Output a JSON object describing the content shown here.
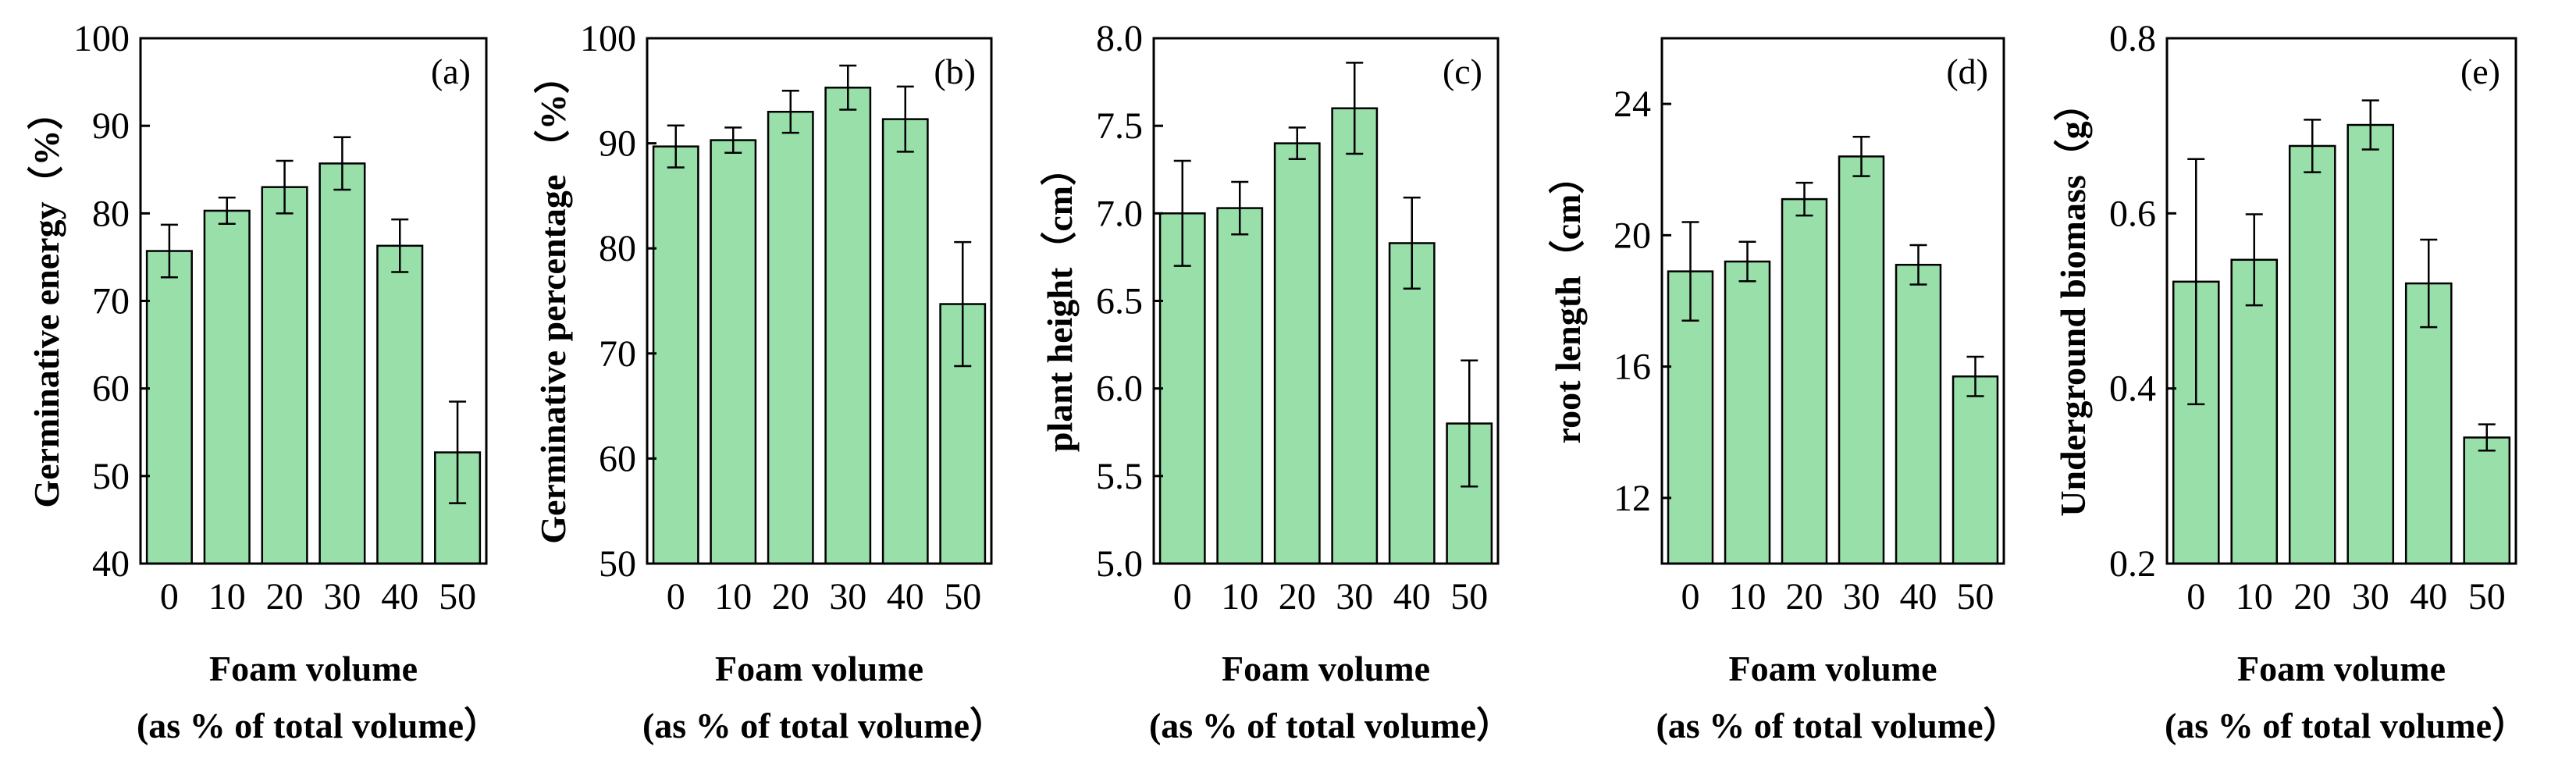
{
  "colors": {
    "bar_fill": "#98dfaa",
    "outline": "#000000"
  },
  "chart_data": [
    {
      "type": "bar",
      "panel_label": "(a)",
      "categories": [
        "0",
        "10",
        "20",
        "30",
        "40",
        "50"
      ],
      "values": [
        75.7,
        80.3,
        83.0,
        85.7,
        76.3,
        52.7
      ],
      "errors": [
        3.0,
        1.5,
        3.0,
        3.0,
        3.0,
        5.8
      ],
      "ylabel": "Germinative energy（%）",
      "xlabel": [
        "Foam volume",
        "(as % of total volume）"
      ],
      "ylim": [
        40,
        100
      ],
      "yticks": [
        40,
        50,
        60,
        70,
        80,
        90,
        100
      ]
    },
    {
      "type": "bar",
      "panel_label": "(b)",
      "categories": [
        "0",
        "10",
        "20",
        "30",
        "40",
        "50"
      ],
      "values": [
        89.7,
        90.3,
        93.0,
        95.3,
        92.3,
        74.7
      ],
      "errors": [
        2.0,
        1.2,
        2.0,
        2.1,
        3.1,
        5.9
      ],
      "ylabel": "Germinative  percentage （%）",
      "xlabel": [
        "Foam volume",
        "(as % of total volume）"
      ],
      "ylim": [
        50,
        100
      ],
      "yticks": [
        50,
        60,
        70,
        80,
        90,
        100
      ]
    },
    {
      "type": "bar",
      "panel_label": "(c)",
      "categories": [
        "0",
        "10",
        "20",
        "30",
        "40",
        "50"
      ],
      "values": [
        7.0,
        7.03,
        7.4,
        7.6,
        6.83,
        5.8
      ],
      "errors": [
        0.3,
        0.15,
        0.09,
        0.26,
        0.26,
        0.36
      ],
      "ylabel": "plant height（cm）",
      "xlabel": [
        "Foam volume",
        "(as % of total volume）"
      ],
      "ylim": [
        5.0,
        8.0
      ],
      "yticks": [
        "5.0",
        "5.5",
        "6.0",
        "6.5",
        "7.0",
        "7.5",
        "8.0"
      ]
    },
    {
      "type": "bar",
      "panel_label": "(d)",
      "categories": [
        "0",
        "10",
        "20",
        "30",
        "40",
        "50"
      ],
      "values": [
        18.9,
        19.2,
        21.1,
        22.4,
        19.1,
        15.7
      ],
      "errors": [
        1.5,
        0.6,
        0.5,
        0.6,
        0.6,
        0.6
      ],
      "ylabel": "root  length（cm）",
      "xlabel": [
        "Foam volume",
        "(as % of total volume）"
      ],
      "ylim": [
        10,
        26
      ],
      "yticks": [
        12,
        16,
        20,
        24
      ]
    },
    {
      "type": "bar",
      "panel_label": "(e)",
      "categories": [
        "0",
        "10",
        "20",
        "30",
        "40",
        "50"
      ],
      "values": [
        0.522,
        0.547,
        0.677,
        0.701,
        0.52,
        0.344
      ],
      "errors": [
        0.14,
        0.052,
        0.03,
        0.028,
        0.05,
        0.015
      ],
      "ylabel": "Underground biomass（g）",
      "xlabel": [
        "Foam volume",
        "(as % of total volume）"
      ],
      "ylim": [
        0.2,
        0.8
      ],
      "yticks": [
        "0.2",
        "0.4",
        "0.6",
        "0.8"
      ]
    }
  ]
}
